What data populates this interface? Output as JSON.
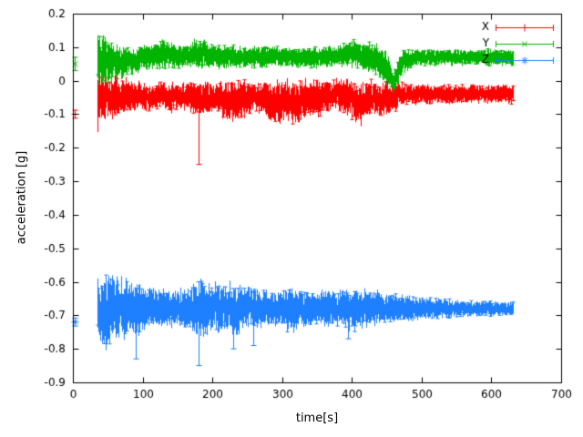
{
  "chart_data": {
    "type": "line",
    "style": "errorbars",
    "title": "",
    "xlabel": "time[s]",
    "ylabel": "acceleration [g]",
    "xlim": [
      0,
      700
    ],
    "ylim": [
      -0.9,
      0.2
    ],
    "xticks": [
      0,
      100,
      200,
      300,
      400,
      500,
      600,
      700
    ],
    "yticks": [
      -0.9,
      -0.8,
      -0.7,
      -0.6,
      -0.5,
      -0.4,
      -0.3,
      -0.2,
      -0.1,
      0,
      0.1,
      0.2
    ],
    "grid": false,
    "legend_position": "top-right",
    "background": "#ffffff",
    "axis_color": "#000000",
    "series": [
      {
        "name": "X",
        "color": "#ff0000",
        "marker": "plus",
        "start_point": {
          "t": 2,
          "y": -0.1,
          "err": 0.012
        },
        "band": [
          [
            35,
            -0.06,
            0.09
          ],
          [
            40,
            -0.05,
            0.075
          ],
          [
            50,
            -0.045,
            0.055
          ],
          [
            60,
            -0.05,
            0.06
          ],
          [
            70,
            -0.045,
            0.05
          ],
          [
            82,
            -0.05,
            0.045
          ],
          [
            95,
            -0.045,
            0.04
          ],
          [
            110,
            -0.05,
            0.035
          ],
          [
            125,
            -0.045,
            0.035
          ],
          [
            140,
            -0.05,
            0.04
          ],
          [
            155,
            -0.045,
            0.035
          ],
          [
            170,
            -0.05,
            0.045
          ],
          [
            180,
            -0.055,
            0.05
          ],
          [
            192,
            -0.05,
            0.045
          ],
          [
            205,
            -0.05,
            0.04
          ],
          [
            220,
            -0.06,
            0.055
          ],
          [
            235,
            -0.065,
            0.06
          ],
          [
            250,
            -0.05,
            0.045
          ],
          [
            265,
            -0.045,
            0.04
          ],
          [
            280,
            -0.06,
            0.055
          ],
          [
            295,
            -0.065,
            0.06
          ],
          [
            310,
            -0.06,
            0.055
          ],
          [
            322,
            -0.07,
            0.06
          ],
          [
            335,
            -0.05,
            0.05
          ],
          [
            350,
            -0.055,
            0.05
          ],
          [
            365,
            -0.045,
            0.04
          ],
          [
            380,
            -0.04,
            0.045
          ],
          [
            395,
            -0.05,
            0.05
          ],
          [
            405,
            -0.07,
            0.065
          ],
          [
            415,
            -0.065,
            0.055
          ],
          [
            428,
            -0.05,
            0.045
          ],
          [
            440,
            -0.055,
            0.05
          ],
          [
            455,
            -0.05,
            0.045
          ],
          [
            470,
            -0.04,
            0.03
          ],
          [
            490,
            -0.04,
            0.028
          ],
          [
            520,
            -0.042,
            0.026
          ],
          [
            560,
            -0.04,
            0.025
          ],
          [
            600,
            -0.04,
            0.025
          ],
          [
            632,
            -0.04,
            0.025
          ]
        ],
        "outliers": [
          [
            180,
            -0.25,
            -0.02
          ]
        ]
      },
      {
        "name": "Y",
        "color": "#00b400",
        "marker": "cross",
        "start_point": {
          "t": 2,
          "y": 0.05,
          "err": 0.02
        },
        "band": [
          [
            35,
            0.065,
            0.075
          ],
          [
            42,
            0.06,
            0.07
          ],
          [
            50,
            0.06,
            0.06
          ],
          [
            60,
            0.055,
            0.05
          ],
          [
            70,
            0.055,
            0.042
          ],
          [
            80,
            0.06,
            0.036
          ],
          [
            90,
            0.06,
            0.034
          ],
          [
            100,
            0.07,
            0.035
          ],
          [
            115,
            0.075,
            0.035
          ],
          [
            130,
            0.08,
            0.04
          ],
          [
            145,
            0.075,
            0.035
          ],
          [
            160,
            0.07,
            0.03
          ],
          [
            175,
            0.08,
            0.04
          ],
          [
            185,
            0.085,
            0.04
          ],
          [
            196,
            0.075,
            0.035
          ],
          [
            210,
            0.07,
            0.03
          ],
          [
            230,
            0.072,
            0.03
          ],
          [
            250,
            0.07,
            0.028
          ],
          [
            270,
            0.072,
            0.03
          ],
          [
            290,
            0.075,
            0.03
          ],
          [
            310,
            0.07,
            0.028
          ],
          [
            330,
            0.068,
            0.028
          ],
          [
            350,
            0.07,
            0.028
          ],
          [
            370,
            0.072,
            0.03
          ],
          [
            390,
            0.078,
            0.034
          ],
          [
            405,
            0.08,
            0.035
          ],
          [
            420,
            0.07,
            0.04
          ],
          [
            435,
            0.065,
            0.04
          ],
          [
            448,
            0.04,
            0.05
          ],
          [
            455,
            0.005,
            0.04
          ],
          [
            460,
            -0.005,
            0.03
          ],
          [
            466,
            0.03,
            0.04
          ],
          [
            473,
            0.06,
            0.034
          ],
          [
            485,
            0.068,
            0.025
          ],
          [
            510,
            0.07,
            0.022
          ],
          [
            550,
            0.07,
            0.022
          ],
          [
            590,
            0.07,
            0.022
          ],
          [
            632,
            0.07,
            0.022
          ]
        ],
        "outliers": []
      },
      {
        "name": "Z",
        "color": "#1e7fff",
        "marker": "star",
        "start_point": {
          "t": 2,
          "y": -0.72,
          "err": 0.012
        },
        "band": [
          [
            35,
            -0.68,
            0.09
          ],
          [
            42,
            -0.69,
            0.1
          ],
          [
            50,
            -0.685,
            0.1
          ],
          [
            58,
            -0.68,
            0.09
          ],
          [
            66,
            -0.685,
            0.09
          ],
          [
            75,
            -0.68,
            0.08
          ],
          [
            85,
            -0.68,
            0.07
          ],
          [
            92,
            -0.68,
            0.085
          ],
          [
            100,
            -0.68,
            0.06
          ],
          [
            115,
            -0.68,
            0.055
          ],
          [
            130,
            -0.68,
            0.05
          ],
          [
            145,
            -0.68,
            0.05
          ],
          [
            160,
            -0.68,
            0.055
          ],
          [
            175,
            -0.68,
            0.07
          ],
          [
            183,
            -0.68,
            0.08
          ],
          [
            192,
            -0.68,
            0.065
          ],
          [
            205,
            -0.68,
            0.07
          ],
          [
            220,
            -0.68,
            0.07
          ],
          [
            232,
            -0.685,
            0.075
          ],
          [
            245,
            -0.68,
            0.06
          ],
          [
            260,
            -0.68,
            0.055
          ],
          [
            275,
            -0.68,
            0.05
          ],
          [
            290,
            -0.68,
            0.05
          ],
          [
            305,
            -0.68,
            0.055
          ],
          [
            316,
            -0.685,
            0.06
          ],
          [
            330,
            -0.68,
            0.05
          ],
          [
            345,
            -0.68,
            0.046
          ],
          [
            360,
            -0.68,
            0.05
          ],
          [
            375,
            -0.68,
            0.046
          ],
          [
            390,
            -0.68,
            0.05
          ],
          [
            400,
            -0.685,
            0.055
          ],
          [
            415,
            -0.68,
            0.05
          ],
          [
            430,
            -0.675,
            0.05
          ],
          [
            445,
            -0.68,
            0.04
          ],
          [
            460,
            -0.68,
            0.038
          ],
          [
            480,
            -0.68,
            0.035
          ],
          [
            500,
            -0.68,
            0.03
          ],
          [
            520,
            -0.68,
            0.028
          ],
          [
            545,
            -0.68,
            0.025
          ],
          [
            570,
            -0.68,
            0.022
          ],
          [
            600,
            -0.68,
            0.02
          ],
          [
            632,
            -0.68,
            0.018
          ]
        ],
        "outliers": [
          [
            90,
            -0.83,
            -0.62
          ],
          [
            180,
            -0.85,
            -0.6
          ],
          [
            230,
            -0.8,
            -0.62
          ],
          [
            258,
            -0.79,
            -0.63
          ],
          [
            395,
            -0.77,
            -0.64
          ]
        ]
      }
    ]
  }
}
